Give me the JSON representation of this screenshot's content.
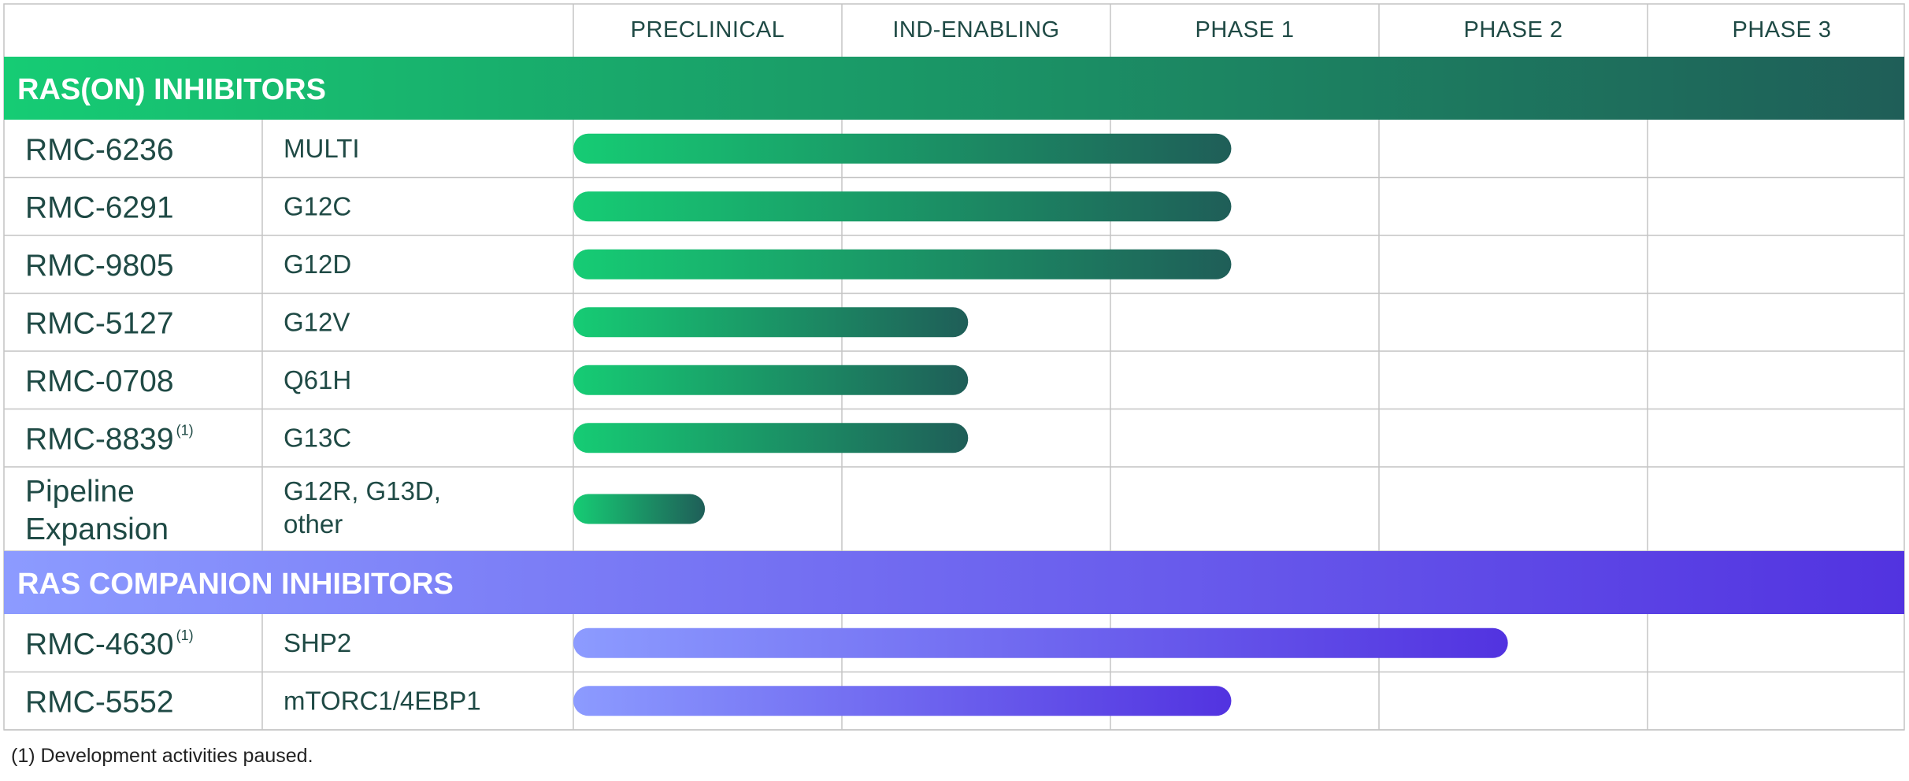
{
  "phases": [
    "PRECLINICAL",
    "IND-ENABLING",
    "PHASE 1",
    "PHASE 2",
    "PHASE 3"
  ],
  "colors": {
    "ras_on_start": "#16cc74",
    "ras_on_end": "#1f5e58",
    "companion_start": "#8c9bff",
    "companion_end": "#5233e0",
    "grid": "#c4c4c4",
    "text": "#1f4a45"
  },
  "chart_data": {
    "type": "bar",
    "orientation": "horizontal",
    "x_scale": "development stage (0 = start of Preclinical, 5 = end of Phase 3)",
    "xlim": [
      0,
      5
    ],
    "groups": [
      {
        "title": "RAS(ON) INHIBITORS",
        "color_key": "ras_on",
        "programs": [
          {
            "name": "RMC-6236",
            "footnote": "",
            "target": "MULTI",
            "progress": 2.45
          },
          {
            "name": "RMC-6291",
            "footnote": "",
            "target": "G12C",
            "progress": 2.45
          },
          {
            "name": "RMC-9805",
            "footnote": "",
            "target": "G12D",
            "progress": 2.45
          },
          {
            "name": "RMC-5127",
            "footnote": "",
            "target": "G12V",
            "progress": 1.47
          },
          {
            "name": "RMC-0708",
            "footnote": "",
            "target": "Q61H",
            "progress": 1.47
          },
          {
            "name": "RMC-8839",
            "footnote": "(1)",
            "target": "G13C",
            "progress": 1.47
          },
          {
            "name": "Pipeline Expansion",
            "footnote": "",
            "target": "G12R, G13D, other",
            "progress": 0.49
          }
        ]
      },
      {
        "title": "RAS COMPANION INHIBITORS",
        "color_key": "companion",
        "programs": [
          {
            "name": "RMC-4630",
            "footnote": "(1)",
            "target": "SHP2",
            "progress": 3.48
          },
          {
            "name": "RMC-5552",
            "footnote": "",
            "target": "mTORC1/4EBP1",
            "progress": 2.45
          }
        ]
      }
    ]
  },
  "footnote_text": "(1) Development activities paused."
}
